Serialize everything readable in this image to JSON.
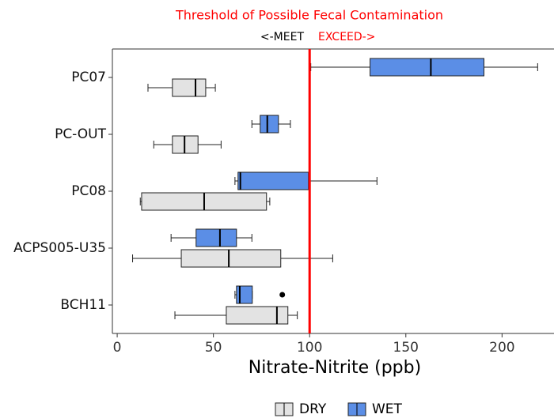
{
  "chart_data": {
    "type": "boxplot",
    "orientation": "horizontal",
    "title": "Threshold of Possible Fecal Contamination",
    "annotations": {
      "left": "<-MEET",
      "right": "EXCEED->"
    },
    "x_label": "Nitrate-Nitrite (ppb)",
    "categories": [
      "PC07",
      "PC-OUT",
      "PC08",
      "ACPS005-U35",
      "BCH11"
    ],
    "xlim": [
      -2.5,
      227
    ],
    "xticks": [
      0,
      50,
      100,
      150,
      200
    ],
    "threshold": 100,
    "threshold_color": "#ff0000",
    "legend_position": "bottom",
    "series": [
      {
        "name": "DRY",
        "color": "#e3e3e3",
        "min": [
          16,
          19,
          12,
          8,
          30
        ],
        "q1": [
          28.7,
          28.7,
          12.7,
          33.3,
          56.7
        ],
        "median": [
          40.7,
          35,
          45.2,
          58,
          83
        ],
        "q3": [
          46,
          42,
          77.6,
          85,
          88.7
        ],
        "max": [
          51,
          54,
          79.3,
          112,
          93.6
        ],
        "outliers": [
          [],
          [],
          [],
          [],
          []
        ]
      },
      {
        "name": "WET",
        "color": "#5b8ee6",
        "min": [
          100.6,
          70,
          61.2,
          28,
          61.2
        ],
        "q1": [
          131.4,
          74.3,
          62.8,
          41,
          62
        ],
        "median": [
          163,
          78,
          64,
          53.4,
          63.7
        ],
        "q3": [
          190.6,
          83.8,
          99.4,
          62,
          70.2
        ],
        "max": [
          218.5,
          90,
          135,
          70,
          70.2
        ],
        "outliers": [
          [],
          [],
          [],
          [],
          [
            85.8
          ]
        ]
      }
    ]
  }
}
